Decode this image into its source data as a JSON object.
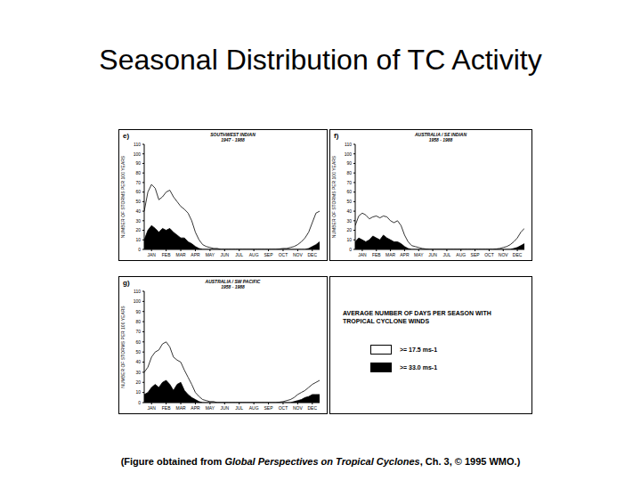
{
  "title": "Seasonal Distribution of TC Activity",
  "caption": [
    "(Figure obtained from ",
    "Global Perspectives on Tropical Cyclones",
    ", Ch. 3, © 1995 WMO.)"
  ],
  "legend_title": "AVERAGE NUMBER OF DAYS PER SEASON WITH TROPICAL CYCLONE WINDS",
  "chart_data": [
    {
      "type": "area",
      "annotation": "e)",
      "title": "SOUTHWEST INDIAN",
      "subtitle": "1947 - 1988",
      "y_label": "NUMBER OF STORMS PER 100 YEARS",
      "x": [
        0,
        0.25,
        0.5,
        0.75,
        1,
        1.25,
        1.5,
        1.75,
        2,
        2.25,
        2.5,
        2.75,
        3,
        3.25,
        3.5,
        3.75,
        4,
        4.25,
        4.5,
        4.75,
        5,
        5.25,
        5.5,
        5.75,
        6,
        6.25,
        6.5,
        6.75,
        7,
        7.25,
        7.5,
        7.75,
        8,
        8.25,
        8.5,
        8.75,
        9,
        9.25,
        9.5,
        9.75,
        10,
        10.25,
        10.5,
        10.75,
        11,
        11.25,
        11.5,
        11.75,
        12
      ],
      "xlim": [
        0,
        12
      ],
      "xticks": [
        {
          "value": 0.5,
          "label": "JAN"
        },
        {
          "value": 1.5,
          "label": "FEB"
        },
        {
          "value": 2.5,
          "label": "MAR"
        },
        {
          "value": 3.5,
          "label": "APR"
        },
        {
          "value": 4.5,
          "label": "MAY"
        },
        {
          "value": 5.5,
          "label": "JUN"
        },
        {
          "value": 6.5,
          "label": "JUL"
        },
        {
          "value": 7.5,
          "label": "AUG"
        },
        {
          "value": 8.5,
          "label": "SEP"
        },
        {
          "value": 9.5,
          "label": "OCT"
        },
        {
          "value": 10.5,
          "label": "NOV"
        },
        {
          "value": 11.5,
          "label": "DEC"
        }
      ],
      "ylim": [
        0,
        110
      ],
      "yticks": [
        0,
        10,
        20,
        30,
        40,
        50,
        60,
        70,
        80,
        90,
        100,
        110
      ],
      "series": [
        {
          "name": ">= 17.5 ms-1",
          "color": "#ffffff",
          "values": [
            40,
            60,
            68,
            64,
            52,
            55,
            60,
            62,
            55,
            50,
            45,
            42,
            38,
            30,
            18,
            10,
            5,
            3,
            2,
            1,
            1,
            0,
            0,
            0,
            0,
            0,
            0,
            0,
            0,
            0,
            0,
            0,
            0,
            0,
            0,
            0,
            0,
            0.5,
            1,
            1,
            2,
            3,
            5,
            8,
            12,
            18,
            28,
            38,
            40
          ]
        },
        {
          "name": ">= 33.0 ms-1",
          "color": "#000000",
          "values": [
            10,
            20,
            25,
            22,
            18,
            22,
            20,
            22,
            18,
            15,
            12,
            12,
            8,
            6,
            3,
            1,
            0,
            0,
            0,
            0,
            0,
            0,
            0,
            0,
            0,
            0,
            0,
            0,
            0,
            0,
            0,
            0,
            0,
            0,
            0,
            0,
            0,
            0,
            0,
            0,
            0,
            0,
            0,
            0,
            0,
            1,
            3,
            5,
            8
          ]
        }
      ]
    },
    {
      "type": "area",
      "annotation": "f)",
      "title": "AUSTRALIA / SE INDIAN",
      "subtitle": "1958 - 1988",
      "y_label": "NUMBER OF STORMS PER 100 YEARS",
      "x": [
        0,
        0.25,
        0.5,
        0.75,
        1,
        1.25,
        1.5,
        1.75,
        2,
        2.25,
        2.5,
        2.75,
        3,
        3.25,
        3.5,
        3.75,
        4,
        4.25,
        4.5,
        4.75,
        5,
        5.25,
        5.5,
        5.75,
        6,
        6.25,
        6.5,
        6.75,
        7,
        7.25,
        7.5,
        7.75,
        8,
        8.25,
        8.5,
        8.75,
        9,
        9.25,
        9.5,
        9.75,
        10,
        10.25,
        10.5,
        10.75,
        11,
        11.25,
        11.5,
        11.75,
        12
      ],
      "xlim": [
        0,
        12
      ],
      "xticks": [
        {
          "value": 0.5,
          "label": "JAN"
        },
        {
          "value": 1.5,
          "label": "FEB"
        },
        {
          "value": 2.5,
          "label": "MAR"
        },
        {
          "value": 3.5,
          "label": "APR"
        },
        {
          "value": 4.5,
          "label": "MAY"
        },
        {
          "value": 5.5,
          "label": "JUN"
        },
        {
          "value": 6.5,
          "label": "JUL"
        },
        {
          "value": 7.5,
          "label": "AUG"
        },
        {
          "value": 8.5,
          "label": "SEP"
        },
        {
          "value": 9.5,
          "label": "OCT"
        },
        {
          "value": 10.5,
          "label": "NOV"
        },
        {
          "value": 11.5,
          "label": "DEC"
        }
      ],
      "ylim": [
        0,
        110
      ],
      "yticks": [
        0,
        10,
        20,
        30,
        40,
        50,
        60,
        70,
        80,
        90,
        100,
        110
      ],
      "series": [
        {
          "name": ">= 17.5 ms-1",
          "color": "#ffffff",
          "values": [
            25,
            35,
            38,
            36,
            32,
            34,
            35,
            33,
            35,
            34,
            30,
            28,
            30,
            25,
            15,
            8,
            4,
            3,
            2,
            1,
            0.5,
            0,
            0,
            0,
            0,
            0,
            0,
            0,
            0,
            0,
            0,
            0,
            0,
            0,
            0,
            0,
            0,
            0,
            0,
            0,
            0.5,
            1,
            2,
            3,
            5,
            8,
            12,
            18,
            22
          ]
        },
        {
          "name": ">= 33.0 ms-1",
          "color": "#000000",
          "values": [
            8,
            12,
            10,
            8,
            10,
            14,
            12,
            10,
            15,
            12,
            10,
            8,
            8,
            6,
            3,
            1,
            0,
            0,
            0,
            0,
            0,
            0,
            0,
            0,
            0,
            0,
            0,
            0,
            0,
            0,
            0,
            0,
            0,
            0,
            0,
            0,
            0,
            0,
            0,
            0,
            0,
            0,
            0,
            0,
            0,
            1,
            2,
            4,
            6
          ]
        }
      ]
    },
    {
      "type": "area",
      "annotation": "g)",
      "title": "AUSTRALIA / SW PACIFIC",
      "subtitle": "1958 - 1988",
      "y_label": "NUMBER OF STORMS PER 100 YEARS",
      "x": [
        0,
        0.25,
        0.5,
        0.75,
        1,
        1.25,
        1.5,
        1.75,
        2,
        2.25,
        2.5,
        2.75,
        3,
        3.25,
        3.5,
        3.75,
        4,
        4.25,
        4.5,
        4.75,
        5,
        5.25,
        5.5,
        5.75,
        6,
        6.25,
        6.5,
        6.75,
        7,
        7.25,
        7.5,
        7.75,
        8,
        8.25,
        8.5,
        8.75,
        9,
        9.25,
        9.5,
        9.75,
        10,
        10.25,
        10.5,
        10.75,
        11,
        11.25,
        11.5,
        11.75,
        12
      ],
      "xlim": [
        0,
        12
      ],
      "xticks": [
        {
          "value": 0.5,
          "label": "JAN"
        },
        {
          "value": 1.5,
          "label": "FEB"
        },
        {
          "value": 2.5,
          "label": "MAR"
        },
        {
          "value": 3.5,
          "label": "APR"
        },
        {
          "value": 4.5,
          "label": "MAY"
        },
        {
          "value": 5.5,
          "label": "JUN"
        },
        {
          "value": 6.5,
          "label": "JUL"
        },
        {
          "value": 7.5,
          "label": "AUG"
        },
        {
          "value": 8.5,
          "label": "SEP"
        },
        {
          "value": 9.5,
          "label": "OCT"
        },
        {
          "value": 10.5,
          "label": "NOV"
        },
        {
          "value": 11.5,
          "label": "DEC"
        }
      ],
      "ylim": [
        0,
        110
      ],
      "yticks": [
        0,
        10,
        20,
        30,
        40,
        50,
        60,
        70,
        80,
        90,
        100,
        110
      ],
      "series": [
        {
          "name": ">= 17.5 ms-1",
          "color": "#ffffff",
          "values": [
            30,
            35,
            45,
            50,
            52,
            58,
            60,
            55,
            45,
            42,
            40,
            32,
            25,
            18,
            10,
            6,
            3,
            2,
            1,
            1,
            0,
            0,
            0,
            0,
            0,
            0,
            0,
            0,
            0,
            0,
            0,
            0,
            0,
            0,
            0,
            0,
            0,
            0.5,
            1,
            2,
            3,
            5,
            8,
            10,
            12,
            15,
            18,
            20,
            22
          ]
        },
        {
          "name": ">= 33.0 ms-1",
          "color": "#000000",
          "values": [
            8,
            10,
            15,
            18,
            15,
            20,
            22,
            18,
            12,
            18,
            20,
            12,
            8,
            5,
            3,
            1,
            0,
            0,
            0,
            0,
            0,
            0,
            0,
            0,
            0,
            0,
            0,
            0,
            0,
            0,
            0,
            0,
            0,
            0,
            0,
            0,
            0,
            0,
            0,
            0,
            0,
            1,
            2,
            3,
            5,
            6,
            8,
            8,
            8
          ]
        }
      ]
    }
  ]
}
